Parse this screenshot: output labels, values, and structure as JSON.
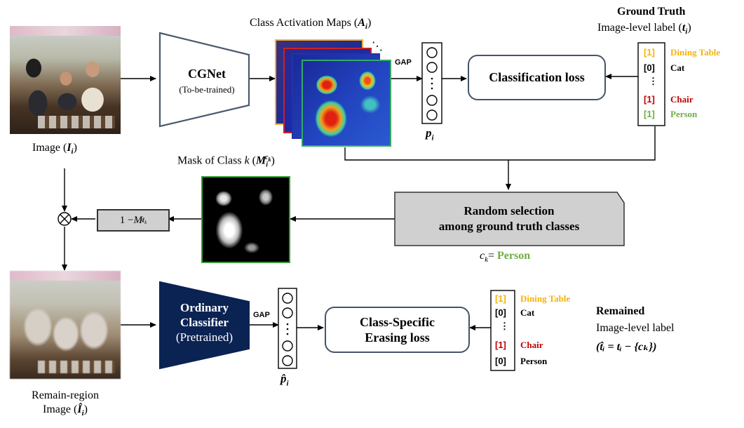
{
  "texts": {
    "cam_title": "Class Activation Maps (",
    "cam_sym": "A",
    "cam_sub": "i",
    "cam_close": ")",
    "gt_title": "Ground Truth",
    "gt_sub_pre": "Image-level label (",
    "gt_sym": "t",
    "gt_sub": "i",
    "gt_close": ")",
    "image_label_pre": "Image (",
    "image_sym": "I",
    "image_sub": "i",
    "image_close": ")",
    "cgnet_title": "CGNet",
    "cgnet_sub": "(To-be-trained)",
    "gap_top": "GAP",
    "gap_bottom": "GAP",
    "p_sym": "p",
    "p_sub": "i",
    "phat_sym": "p̂",
    "phat_sub": "i",
    "classification_loss": "Classification loss",
    "mask_title_pre": "Mask of Class ",
    "mask_k": "k",
    "mask_open": " (",
    "mask_sym": "M",
    "mask_sup": "c",
    "mask_supsub": "k",
    "mask_sub": "i",
    "mask_close": ")",
    "inv_mask_pre": "1 − ",
    "inv_mask_sym": "M",
    "inv_mask_sup": "c",
    "inv_mask_supsub": "k",
    "inv_mask_sub": "i",
    "random_line1": "Random selection",
    "random_line2": "among ground truth classes",
    "ck_sym": "c",
    "ck_sub": "k",
    "ck_eq": "= ",
    "ck_value": "Person",
    "ordinary_line1": "Ordinary",
    "ordinary_line2": "Classifier",
    "ordinary_line3": "(Pretrained)",
    "cse_line1": "Class-Specific",
    "cse_line2": "Erasing loss",
    "remained_title": "Remained",
    "remained_sub": "Image-level label",
    "remained_formula": "(t̂ᵢ = tᵢ − {cₖ})",
    "remain_label_line1": "Remain-region",
    "remain_label_pre": "Image (",
    "remain_sym": "Î",
    "remain_sub": "i",
    "remain_close": ")",
    "multiply": "⊗",
    "vdots": "⋮",
    "ddots": "⋱"
  },
  "gt_vector": [
    {
      "value": "[1]",
      "label": "Dining Table",
      "color": "#f5b400"
    },
    {
      "value": "[0]",
      "label": "Cat",
      "color": "#000000"
    },
    {
      "value": "⋮",
      "label": "",
      "color": "#000000"
    },
    {
      "value": "[1]",
      "label": "Chair",
      "color": "#c00000"
    },
    {
      "value": "[1]",
      "label": "Person",
      "color": "#70ad47"
    }
  ],
  "remained_vector": [
    {
      "value": "[1]",
      "label": "Dining Table",
      "color": "#f5b400"
    },
    {
      "value": "[0]",
      "label": "Cat",
      "color": "#000000"
    },
    {
      "value": "⋮",
      "label": "",
      "color": "#000000"
    },
    {
      "value": "[1]",
      "label": "Chair",
      "color": "#c00000"
    },
    {
      "value": "[0]",
      "label": "Person",
      "color": "#000000"
    }
  ],
  "colors": {
    "cgnet_border": "#4a5a70",
    "ordinary_fill": "#0b2353",
    "box_border": "#46536a",
    "mask_border": "#3a9a3a",
    "random_fill": "#d0d0d0",
    "person_green": "#70ad47",
    "cam_frame_yellow": "#f0b030",
    "cam_frame_red": "#cc2222",
    "cam_frame_blue": "#2233aa",
    "cam_frame_green": "#33aa66"
  }
}
